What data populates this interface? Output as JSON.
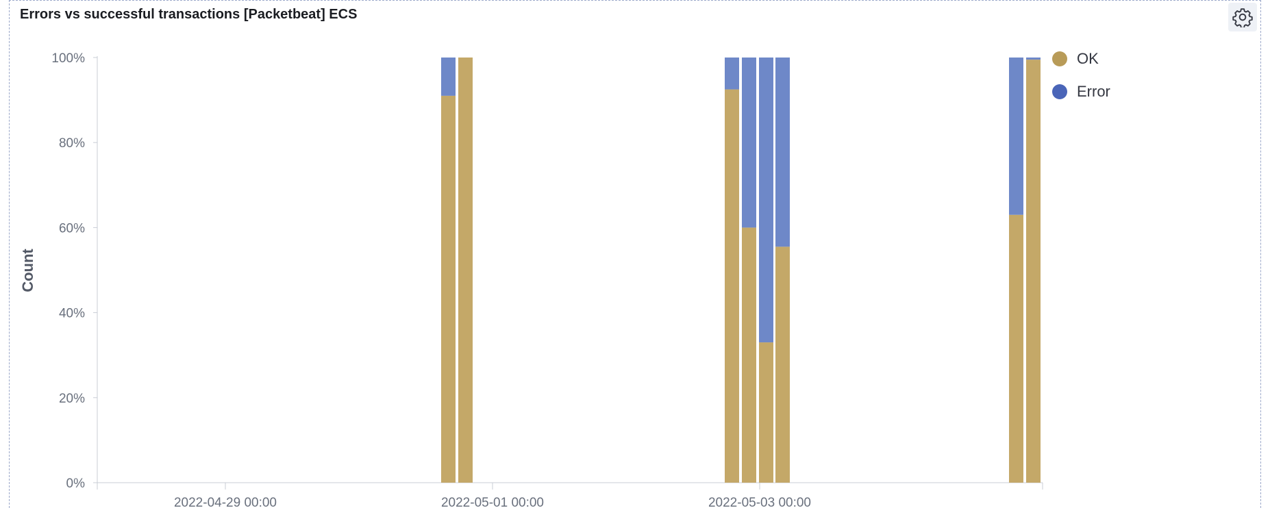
{
  "panel": {
    "title": "Errors vs successful transactions [Packetbeat] ECS",
    "settings_icon": "gear-icon"
  },
  "chart_data": {
    "type": "bar",
    "stacked": true,
    "normalized": true,
    "title": "Errors vs successful transactions [Packetbeat] ECS",
    "ylabel": "Count",
    "xlabel": "",
    "ylim": [
      0,
      100
    ],
    "yticks": [
      "0%",
      "20%",
      "40%",
      "60%",
      "80%",
      "100%"
    ],
    "xticks": [
      "2022-04-29 00:00",
      "2022-05-01 00:00",
      "2022-05-03 00:00"
    ],
    "grid": false,
    "legend_position": "right",
    "series": [
      {
        "name": "OK",
        "color": "#c4a868"
      },
      {
        "name": "Error",
        "color": "#6e88c8"
      }
    ],
    "x": [
      "2022-04-30 18:00",
      "2022-04-30 21:00",
      "2022-05-02 18:00",
      "2022-05-02 21:00",
      "2022-05-03 00:00",
      "2022-05-03 03:00",
      "2022-05-04 18:00",
      "2022-05-04 21:00"
    ],
    "ok_percent": [
      91,
      100,
      92.5,
      60,
      33,
      55.5,
      63,
      99.5
    ],
    "error_percent": [
      9,
      0,
      7.5,
      40,
      67,
      44.5,
      37,
      0.5
    ]
  }
}
